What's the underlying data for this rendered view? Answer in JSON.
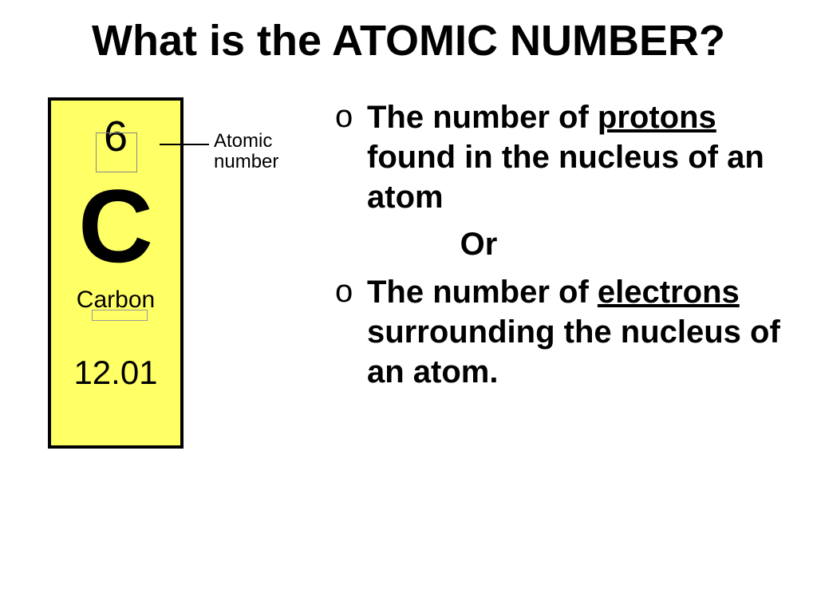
{
  "slide": {
    "title": "What is the ATOMIC NUMBER?",
    "background_color": "#ffffff",
    "text_color": "#000000"
  },
  "element_tile": {
    "atomic_number": "6",
    "symbol": "C",
    "name": "Carbon",
    "mass": "12.01",
    "background_color": "#ffff66",
    "border_color": "#000000",
    "annotation_label": "Atomic number"
  },
  "bullets": {
    "marker": "o",
    "item1_pre": "The number of ",
    "item1_underlined": "protons",
    "item1_post": " found in the nucleus of an atom",
    "or_label": "Or",
    "item2_pre": "The number of ",
    "item2_underlined": "electrons",
    "item2_post": " surrounding the nucleus of an atom."
  },
  "typography": {
    "title_fontsize": 54,
    "body_fontsize": 40,
    "element_symbol_fontsize": 130,
    "font_family_body": "Comic Sans MS",
    "font_family_element": "Arial"
  }
}
